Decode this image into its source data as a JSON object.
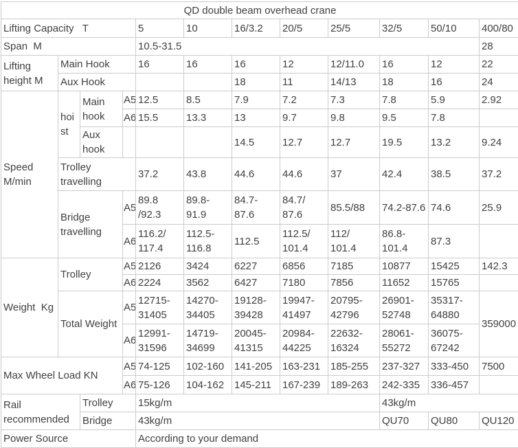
{
  "colors": {
    "text-color": "#404040",
    "border-color": "#cbcbcb",
    "bg-color": "#ffffff"
  },
  "table": {
    "rows": [
      {
        "cells": [
          {
            "t": "QD double beam overhead crane",
            "cs": 12,
            "n": "table-title",
            "cls": "center"
          }
        ]
      },
      {
        "cells": [
          {
            "t": "Lifting Capacity   T",
            "cs": 4,
            "n": "row-label-lifting-capacity"
          },
          {
            "t": "5",
            "n": "capacity-value"
          },
          {
            "t": "10",
            "n": "capacity-value"
          },
          {
            "t": "16/3.2",
            "n": "capacity-value"
          },
          {
            "t": "20/5",
            "n": "capacity-value"
          },
          {
            "t": "25/5",
            "n": "capacity-value"
          },
          {
            "t": "32/5",
            "n": "capacity-value"
          },
          {
            "t": "50/10",
            "n": "capacity-value"
          },
          {
            "t": "400/80",
            "n": "capacity-value"
          }
        ]
      },
      {
        "cells": [
          {
            "t": "Span  M",
            "cs": 4,
            "n": "row-label-span"
          },
          {
            "t": "10.5-31.5",
            "cs": 7,
            "n": "span-value"
          },
          {
            "t": "28",
            "n": "span-value"
          }
        ]
      },
      {
        "cells": [
          {
            "t": "Lifting\nheight M",
            "rs": 2,
            "n": "row-label-lifting-height"
          },
          {
            "t": "Main Hook",
            "cs": 3,
            "n": "row-label-main-hook"
          },
          {
            "t": "16"
          },
          {
            "t": "16"
          },
          {
            "t": "16"
          },
          {
            "t": "12"
          },
          {
            "t": "12/11.0"
          },
          {
            "t": "16"
          },
          {
            "t": "12"
          },
          {
            "t": "22"
          }
        ]
      },
      {
        "cells": [
          {
            "t": "Aux Hook",
            "cs": 3,
            "n": "row-label-aux-hook"
          },
          {
            "t": ""
          },
          {
            "t": ""
          },
          {
            "t": "18"
          },
          {
            "t": "11"
          },
          {
            "t": "14/13"
          },
          {
            "t": "18"
          },
          {
            "t": "16"
          },
          {
            "t": "24"
          }
        ]
      },
      {
        "cells": [
          {
            "t": "Speed\nM/min",
            "rs": 6,
            "n": "row-label-speed"
          },
          {
            "t": "hoist",
            "rs": 3,
            "n": "row-label-hoist"
          },
          {
            "t": "Main\nhook",
            "rs": 2,
            "n": "row-label-hoist-main-hook"
          },
          {
            "t": "A5",
            "n": "duty-class-a5",
            "cls": "duty"
          },
          {
            "t": "12.5"
          },
          {
            "t": "8.5"
          },
          {
            "t": "7.9"
          },
          {
            "t": "7.2"
          },
          {
            "t": "7.3"
          },
          {
            "t": "7.8"
          },
          {
            "t": "5.9"
          },
          {
            "t": "2.92"
          }
        ]
      },
      {
        "cells": [
          {
            "t": "A6",
            "n": "duty-class-a6",
            "cls": "duty"
          },
          {
            "t": "15.5"
          },
          {
            "t": "13.3"
          },
          {
            "t": "13"
          },
          {
            "t": "9.7"
          },
          {
            "t": "9.8"
          },
          {
            "t": "9.5"
          },
          {
            "t": "7.8"
          },
          {
            "t": ""
          }
        ]
      },
      {
        "cells": [
          {
            "t": "Aux\nhook",
            "n": "row-label-hoist-aux-hook"
          },
          {
            "t": "",
            "n": "empty-cell"
          },
          {
            "t": ""
          },
          {
            "t": ""
          },
          {
            "t": "14.5"
          },
          {
            "t": "12.7"
          },
          {
            "t": "12.7"
          },
          {
            "t": "19.5"
          },
          {
            "t": "13.2"
          },
          {
            "t": "9.24"
          }
        ]
      },
      {
        "cells": [
          {
            "t": "Trolley\ntravelling",
            "cs": 3,
            "n": "row-label-trolley-travelling"
          },
          {
            "t": "37.2"
          },
          {
            "t": "43.8"
          },
          {
            "t": "44.6"
          },
          {
            "t": "44.6"
          },
          {
            "t": "37"
          },
          {
            "t": "42.4"
          },
          {
            "t": "38.5"
          },
          {
            "t": "37.2"
          }
        ]
      },
      {
        "cells": [
          {
            "t": "Bridge\ntravelling",
            "cs": 2,
            "rs": 2,
            "n": "row-label-bridge-travelling"
          },
          {
            "t": "A5",
            "n": "duty-class-a5",
            "cls": "duty"
          },
          {
            "t": "89.8\n/92.3"
          },
          {
            "t": "89.8-91.9"
          },
          {
            "t": "84.7-87.6"
          },
          {
            "t": "84.7/\n87.6"
          },
          {
            "t": "85.5/88"
          },
          {
            "t": "74.2-87.6"
          },
          {
            "t": "74.6"
          },
          {
            "t": "25.9"
          }
        ]
      },
      {
        "cells": [
          {
            "t": "A6",
            "n": "duty-class-a6",
            "cls": "duty"
          },
          {
            "t": "116.2/\n117.4"
          },
          {
            "t": "112.5-\n116.8"
          },
          {
            "t": "112.5"
          },
          {
            "t": "112.5/\n101.4"
          },
          {
            "t": "112/\n101.4"
          },
          {
            "t": "86.8-\n101.4"
          },
          {
            "t": "87.3"
          },
          {
            "t": ""
          }
        ]
      },
      {
        "cells": [
          {
            "t": "Weight  Kg",
            "rs": 4,
            "n": "row-label-weight"
          },
          {
            "t": "Trolley",
            "cs": 2,
            "rs": 2,
            "n": "row-label-weight-trolley"
          },
          {
            "t": "A5",
            "n": "duty-class-a5",
            "cls": "duty"
          },
          {
            "t": "2126"
          },
          {
            "t": "3424"
          },
          {
            "t": "6227"
          },
          {
            "t": "6856"
          },
          {
            "t": "7185"
          },
          {
            "t": "10877"
          },
          {
            "t": "15425"
          },
          {
            "t": "142.3"
          }
        ]
      },
      {
        "cells": [
          {
            "t": "A6",
            "n": "duty-class-a6",
            "cls": "duty"
          },
          {
            "t": "2224"
          },
          {
            "t": "3562"
          },
          {
            "t": "6427"
          },
          {
            "t": "7180"
          },
          {
            "t": "7856"
          },
          {
            "t": "11652"
          },
          {
            "t": "15765"
          },
          {
            "t": ""
          }
        ]
      },
      {
        "cells": [
          {
            "t": "Total Weight",
            "cs": 2,
            "rs": 2,
            "n": "row-label-total-weight"
          },
          {
            "t": "A5",
            "n": "duty-class-a5",
            "cls": "duty"
          },
          {
            "t": "12715-\n31405"
          },
          {
            "t": "14270-\n34405"
          },
          {
            "t": "19128-\n39428"
          },
          {
            "t": "19947-\n41497"
          },
          {
            "t": "20795-\n42796"
          },
          {
            "t": "26901-\n52748"
          },
          {
            "t": "35317-\n64880"
          },
          {
            "t": "359000",
            "rs": 2
          }
        ]
      },
      {
        "cells": [
          {
            "t": "A6",
            "n": "duty-class-a6",
            "cls": "duty"
          },
          {
            "t": "12991-\n31596"
          },
          {
            "t": "14719-\n34699"
          },
          {
            "t": "20045-\n41315"
          },
          {
            "t": "20984-\n44225"
          },
          {
            "t": "22632-\n16324"
          },
          {
            "t": "28061-\n55272"
          },
          {
            "t": "36075-\n67242"
          }
        ]
      },
      {
        "cells": [
          {
            "t": "Max Wheel Load KN",
            "cs": 3,
            "rs": 2,
            "n": "row-label-max-wheel-load"
          },
          {
            "t": "A5",
            "n": "duty-class-a5",
            "cls": "duty"
          },
          {
            "t": "74-125"
          },
          {
            "t": "102-160"
          },
          {
            "t": "141-205"
          },
          {
            "t": "163-231"
          },
          {
            "t": "185-255"
          },
          {
            "t": "237-327"
          },
          {
            "t": "333-450"
          },
          {
            "t": "7500"
          }
        ]
      },
      {
        "cells": [
          {
            "t": "A6",
            "n": "duty-class-a6",
            "cls": "duty"
          },
          {
            "t": "75-126"
          },
          {
            "t": "104-162"
          },
          {
            "t": "145-211"
          },
          {
            "t": "167-239"
          },
          {
            "t": "189-263"
          },
          {
            "t": "242-335"
          },
          {
            "t": "336-457"
          },
          {
            "t": ""
          }
        ]
      },
      {
        "cells": [
          {
            "t": "Rail\nrecommended",
            "cs": 2,
            "rs": 2,
            "n": "row-label-rail"
          },
          {
            "t": "Trolley",
            "cs": 2,
            "n": "row-label-rail-trolley"
          },
          {
            "t": "15kg/m",
            "cs": 5,
            "n": "rail-trolley-value"
          },
          {
            "t": "43kg/m",
            "cs": 3,
            "n": "rail-trolley-value"
          }
        ]
      },
      {
        "cells": [
          {
            "t": "Bridge",
            "cs": 2,
            "n": "row-label-rail-bridge"
          },
          {
            "t": "43kg/m",
            "cs": 5,
            "n": "rail-bridge-value"
          },
          {
            "t": "QU70",
            "n": "rail-bridge-value"
          },
          {
            "t": "QU80",
            "n": "rail-bridge-value"
          },
          {
            "t": "QU120",
            "n": "rail-bridge-value"
          }
        ]
      },
      {
        "cells": [
          {
            "t": "Power Source",
            "cs": 4,
            "n": "row-label-power-source"
          },
          {
            "t": "According to your demand",
            "cs": 8,
            "n": "power-source-value"
          }
        ]
      }
    ]
  }
}
